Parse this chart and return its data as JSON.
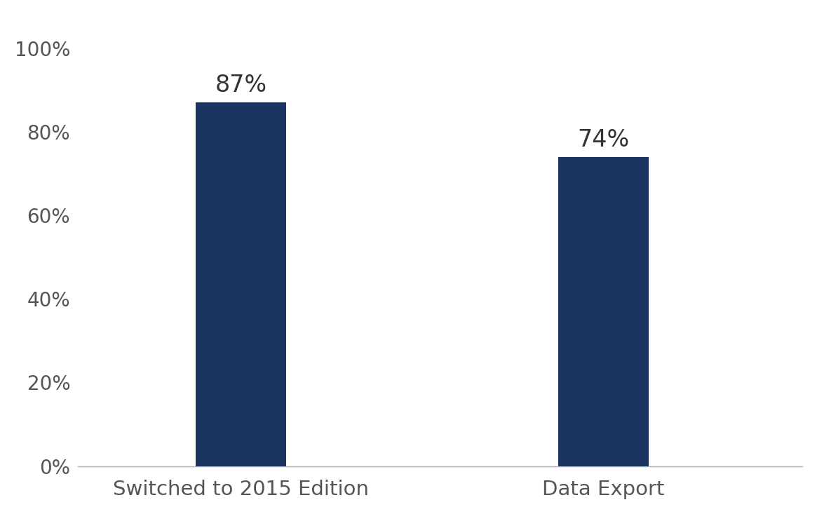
{
  "categories": [
    "Switched to 2015 Edition",
    "Data Export"
  ],
  "values": [
    0.87,
    0.74
  ],
  "labels": [
    "87%",
    "74%"
  ],
  "bar_color": "#1a3560",
  "bar_width": 0.25,
  "ylim": [
    0,
    1.08
  ],
  "yticks": [
    0,
    0.2,
    0.4,
    0.6,
    0.8,
    1.0
  ],
  "ytick_labels": [
    "0%",
    "20%",
    "40%",
    "60%",
    "80%",
    "100%"
  ],
  "tick_fontsize": 20,
  "xlabel_fontsize": 21,
  "value_label_fontsize": 24,
  "background_color": "#ffffff",
  "spine_color": "#b0b0b0",
  "label_color": "#555555",
  "value_label_color": "#333333"
}
